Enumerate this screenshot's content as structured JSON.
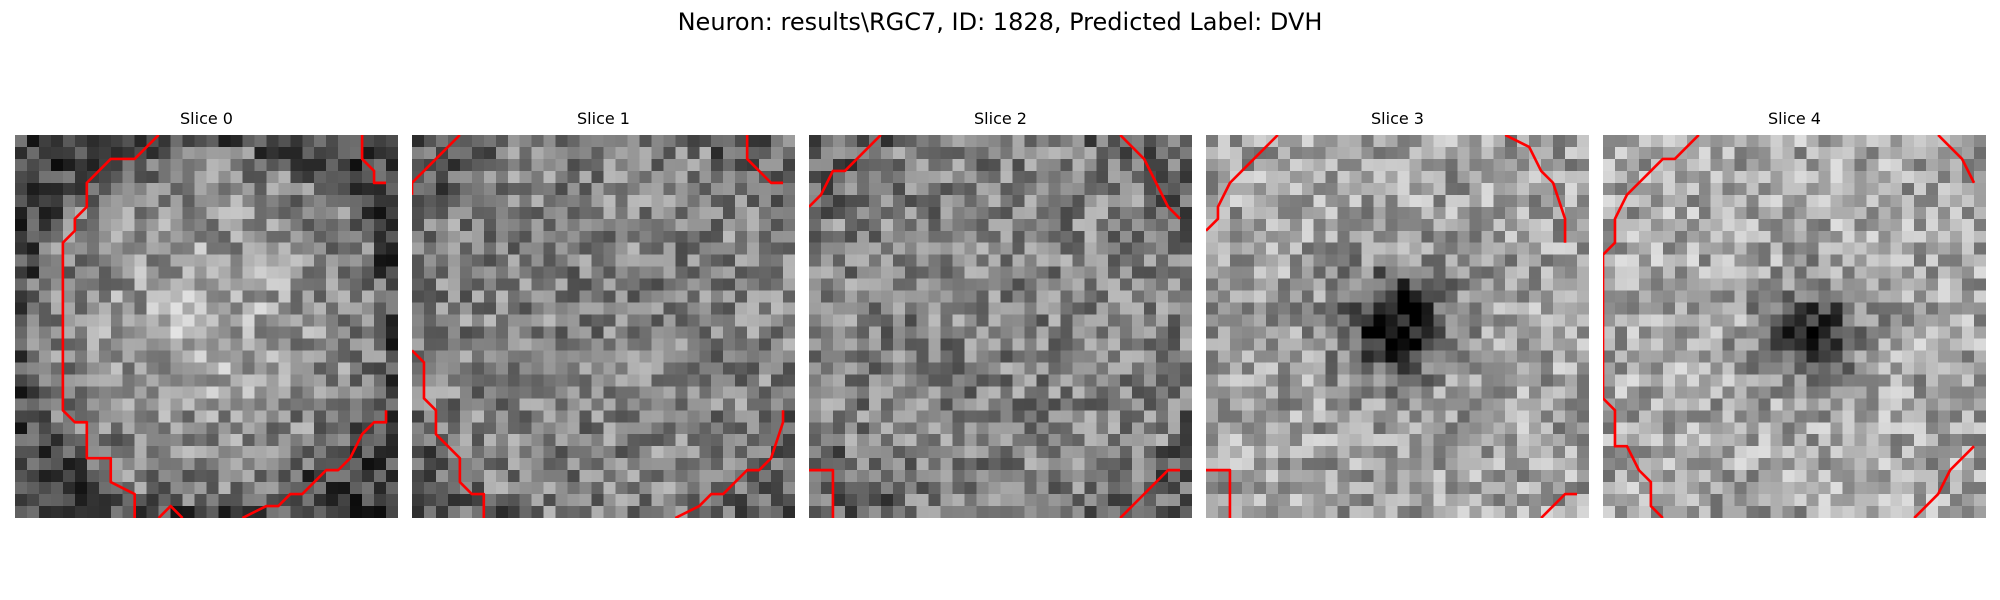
{
  "figure": {
    "title": "Neuron: results\\RGC7, ID: 1828, Predicted Label: DVH"
  },
  "panels": [
    {
      "title": "Slice 0",
      "pattern": "bright-center",
      "contours": [
        [
          [
            12,
            0
          ],
          [
            10,
            2
          ],
          [
            8,
            2
          ],
          [
            6,
            4
          ],
          [
            6,
            6
          ],
          [
            5,
            7
          ],
          [
            5,
            8
          ],
          [
            4,
            9
          ],
          [
            4,
            23
          ],
          [
            5,
            24
          ],
          [
            6,
            24
          ],
          [
            6,
            27
          ],
          [
            8,
            27
          ],
          [
            8,
            29
          ],
          [
            10,
            30
          ],
          [
            10,
            32
          ]
        ],
        [
          [
            12,
            32
          ],
          [
            13,
            31
          ],
          [
            14,
            32
          ]
        ],
        [
          [
            19,
            32
          ],
          [
            21,
            31
          ],
          [
            22,
            31
          ],
          [
            23,
            30
          ],
          [
            24,
            30
          ],
          [
            26,
            28
          ],
          [
            27,
            28
          ],
          [
            28,
            27
          ],
          [
            29,
            25
          ],
          [
            30,
            24
          ],
          [
            31,
            24
          ],
          [
            31,
            23
          ]
        ],
        [
          [
            29,
            0
          ],
          [
            29,
            2
          ],
          [
            30,
            3
          ],
          [
            30,
            4
          ],
          [
            31,
            4
          ]
        ]
      ]
    },
    {
      "title": "Slice 1",
      "pattern": "noise",
      "contours": [
        [
          [
            4,
            0
          ],
          [
            2,
            2
          ],
          [
            0,
            4
          ],
          [
            0,
            5
          ]
        ],
        [
          [
            28,
            0
          ],
          [
            28,
            2
          ],
          [
            30,
            4
          ],
          [
            31,
            4
          ]
        ],
        [
          [
            0,
            18
          ],
          [
            1,
            19
          ],
          [
            1,
            22
          ],
          [
            2,
            23
          ],
          [
            2,
            25
          ],
          [
            3,
            26
          ],
          [
            4,
            27
          ],
          [
            4,
            29
          ],
          [
            5,
            30
          ],
          [
            6,
            30
          ],
          [
            6,
            32
          ]
        ],
        [
          [
            22,
            32
          ],
          [
            24,
            31
          ],
          [
            25,
            30
          ],
          [
            26,
            30
          ],
          [
            28,
            28
          ],
          [
            29,
            28
          ],
          [
            30,
            27
          ],
          [
            31,
            24
          ],
          [
            31,
            23
          ]
        ]
      ]
    },
    {
      "title": "Slice 2",
      "pattern": "noise",
      "contours": [
        [
          [
            6,
            0
          ],
          [
            3,
            3
          ],
          [
            2,
            3
          ],
          [
            1,
            5
          ],
          [
            0,
            6
          ]
        ],
        [
          [
            26,
            0
          ],
          [
            28,
            2
          ],
          [
            29,
            4
          ],
          [
            30,
            6
          ],
          [
            31,
            7
          ]
        ],
        [
          [
            0,
            28
          ],
          [
            2,
            28
          ],
          [
            2,
            32
          ]
        ],
        [
          [
            26,
            32
          ],
          [
            29,
            29
          ],
          [
            30,
            28
          ],
          [
            31,
            28
          ]
        ]
      ]
    },
    {
      "title": "Slice 3",
      "pattern": "dark-center",
      "contours": [
        [
          [
            6,
            0
          ],
          [
            4,
            2
          ],
          [
            2,
            4
          ],
          [
            1,
            6
          ],
          [
            1,
            7
          ],
          [
            0,
            8
          ]
        ],
        [
          [
            25,
            0
          ],
          [
            27,
            1
          ],
          [
            28,
            3
          ],
          [
            29,
            4
          ],
          [
            30,
            7
          ],
          [
            30,
            9
          ]
        ],
        [
          [
            0,
            28
          ],
          [
            2,
            28
          ],
          [
            2,
            32
          ]
        ],
        [
          [
            28,
            32
          ],
          [
            29,
            31
          ],
          [
            30,
            30
          ],
          [
            31,
            30
          ]
        ]
      ]
    },
    {
      "title": "Slice 4",
      "pattern": "dark-spot",
      "contours": [
        [
          [
            8,
            0
          ],
          [
            6,
            2
          ],
          [
            5,
            2
          ],
          [
            4,
            3
          ],
          [
            3,
            4
          ],
          [
            2,
            5
          ],
          [
            1,
            7
          ],
          [
            1,
            9
          ],
          [
            0,
            10
          ],
          [
            0,
            22
          ],
          [
            1,
            23
          ],
          [
            1,
            26
          ],
          [
            2,
            26
          ],
          [
            3,
            28
          ],
          [
            4,
            29
          ],
          [
            4,
            31
          ],
          [
            5,
            32
          ]
        ],
        [
          [
            28,
            0
          ],
          [
            30,
            2
          ],
          [
            31,
            4
          ]
        ],
        [
          [
            26,
            32
          ],
          [
            28,
            30
          ],
          [
            29,
            28
          ],
          [
            31,
            26
          ]
        ]
      ]
    }
  ],
  "colors": {
    "contour": "#ff0000",
    "background": "#ffffff",
    "text": "#000000"
  }
}
